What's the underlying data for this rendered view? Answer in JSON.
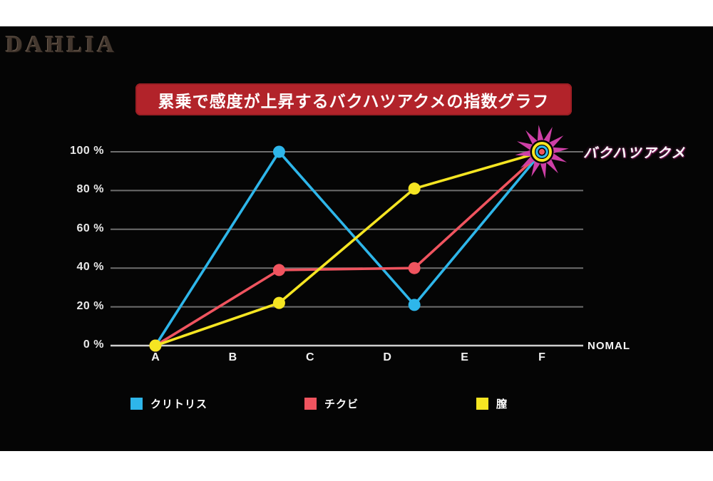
{
  "brand": {
    "logo_text": "DAHLIA",
    "logo_color": "#44382f"
  },
  "title_banner": {
    "bg_color": "#b2232a",
    "text_color": "#ffffff"
  },
  "chart_data": {
    "type": "line",
    "title": "累乗で感度が上昇するバクハツアクメの指数グラフ",
    "xlabel": "",
    "ylabel": "",
    "x_categories": [
      "A",
      "B",
      "C",
      "D",
      "E",
      "F"
    ],
    "x_axis_end_label": "NOMAL",
    "xlim": [
      0,
      5
    ],
    "ylim": [
      0,
      100
    ],
    "grid": true,
    "legend_position": "bottom",
    "y_ticks": [
      {
        "value": 0,
        "label": "0 %"
      },
      {
        "value": 20,
        "label": "20 %"
      },
      {
        "value": 40,
        "label": "40 %"
      },
      {
        "value": 60,
        "label": "60 %"
      },
      {
        "value": 80,
        "label": "80 %"
      },
      {
        "value": 100,
        "label": "100 %"
      }
    ],
    "series": [
      {
        "name": "クリトリス",
        "color": "#2eb6ea",
        "x": [
          0,
          1.6,
          3.35,
          5
        ],
        "values": [
          0,
          100,
          21,
          100
        ]
      },
      {
        "name": "チクビ",
        "color": "#f0545f",
        "x": [
          0,
          1.6,
          3.35,
          5
        ],
        "values": [
          0,
          39,
          40,
          100
        ]
      },
      {
        "name": "膣",
        "color": "#f5e522",
        "x": [
          0,
          1.6,
          3.35,
          5
        ],
        "values": [
          0,
          22,
          81,
          100
        ]
      }
    ],
    "annotation": {
      "text": "バクハツアクメ",
      "x": 5,
      "value": 100,
      "burst_color": "#cd3fa6",
      "ring_colors": [
        "#f5e522",
        "#2eb6ea",
        "#f0545f"
      ],
      "text_color": "#ffffff"
    },
    "grid_color": "#6e6e6e",
    "axis_color": "#cfcfcf"
  }
}
